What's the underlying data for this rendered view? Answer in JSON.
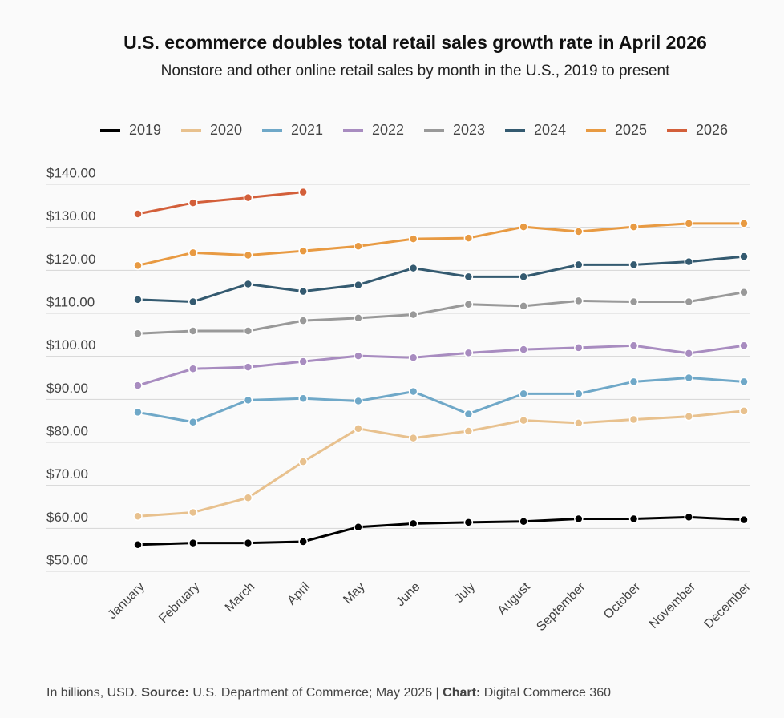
{
  "chart_data": {
    "type": "line",
    "title": "U.S. ecommerce doubles total retail sales growth rate in April 2026",
    "subtitle": "Nonstore and other online retail sales by month in the U.S., 2019 to present",
    "footer": {
      "note": "In billions, USD.",
      "source_label": "Source:",
      "source": "U.S. Department of Commerce; May 2026 |",
      "chart_label": "Chart:",
      "chart": "Digital Commerce 360"
    },
    "categories": [
      "January",
      "February",
      "March",
      "April",
      "May",
      "June",
      "July",
      "August",
      "September",
      "October",
      "November",
      "December"
    ],
    "series": [
      {
        "name": "2019",
        "color": "#000000",
        "values": [
          56.2,
          56.6,
          56.6,
          56.9,
          60.3,
          61.1,
          61.4,
          61.6,
          62.2,
          62.2,
          62.6,
          62.0
        ]
      },
      {
        "name": "2020",
        "color": "#e8c18e",
        "values": [
          62.8,
          63.7,
          67.1,
          75.5,
          83.2,
          81.0,
          82.6,
          85.1,
          84.5,
          85.3,
          86.0,
          87.3
        ]
      },
      {
        "name": "2021",
        "color": "#6fa8c8",
        "values": [
          87.0,
          84.7,
          89.8,
          90.2,
          89.6,
          91.8,
          86.6,
          91.3,
          91.3,
          94.1,
          95.0,
          94.1
        ]
      },
      {
        "name": "2022",
        "color": "#a88cc0",
        "values": [
          93.2,
          97.1,
          97.5,
          98.8,
          100.1,
          99.7,
          100.8,
          101.6,
          102.0,
          102.5,
          100.7,
          102.5
        ]
      },
      {
        "name": "2023",
        "color": "#999999",
        "values": [
          105.3,
          105.9,
          105.9,
          108.3,
          108.9,
          109.7,
          112.1,
          111.7,
          112.9,
          112.7,
          112.7,
          114.9
        ]
      },
      {
        "name": "2024",
        "color": "#345a70",
        "values": [
          113.2,
          112.7,
          116.8,
          115.1,
          116.6,
          120.5,
          118.5,
          118.5,
          121.3,
          121.3,
          122.0,
          123.2
        ]
      },
      {
        "name": "2025",
        "color": "#e89a42",
        "values": [
          121.1,
          124.1,
          123.5,
          124.5,
          125.6,
          127.3,
          127.5,
          130.1,
          129.0,
          130.1,
          130.9,
          130.9
        ]
      },
      {
        "name": "2026",
        "color": "#d35f3a",
        "values": [
          133.1,
          135.7,
          136.9,
          138.2,
          null,
          null,
          null,
          null,
          null,
          null,
          null,
          null
        ]
      }
    ],
    "ylim": [
      50,
      140
    ],
    "yticks": [
      {
        "value": 50,
        "label": "$50.00"
      },
      {
        "value": 60,
        "label": "$60.00"
      },
      {
        "value": 70,
        "label": "$70.00"
      },
      {
        "value": 80,
        "label": "$80.00"
      },
      {
        "value": 90,
        "label": "$90.00"
      },
      {
        "value": 100,
        "label": "$100.00"
      },
      {
        "value": 110,
        "label": "$110.00"
      },
      {
        "value": 120,
        "label": "$120.00"
      },
      {
        "value": 130,
        "label": "$130.00"
      },
      {
        "value": 140,
        "label": "$140.00"
      }
    ],
    "grid": true,
    "legend": "top"
  }
}
